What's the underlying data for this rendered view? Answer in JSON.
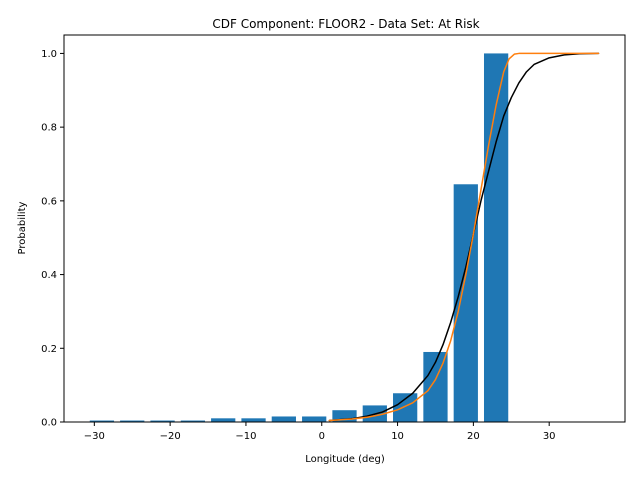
{
  "chart_data": {
    "type": "bar",
    "title": "CDF Component: FLOOR2 - Data Set: At Risk",
    "xlabel": "Longitude (deg)",
    "ylabel": "Probability",
    "xlim": [
      -34,
      40
    ],
    "ylim": [
      0,
      1.05
    ],
    "xticks": [
      -30,
      -20,
      -10,
      0,
      10,
      20,
      30
    ],
    "yticks": [
      0.0,
      0.2,
      0.4,
      0.6,
      0.8,
      1.0
    ],
    "xtick_labels": [
      "−30",
      "−20",
      "−10",
      "0",
      "10",
      "20",
      "30"
    ],
    "ytick_labels": [
      "0.0",
      "0.2",
      "0.4",
      "0.6",
      "0.8",
      "1.0"
    ],
    "bar_width": 3.2,
    "bar_color": "#1f77b4",
    "bars": {
      "x": [
        -29,
        -25,
        -21,
        -17,
        -13,
        -9,
        -5,
        -1,
        3,
        7,
        11,
        15,
        19,
        23
      ],
      "values": [
        0.004,
        0.004,
        0.004,
        0.004,
        0.01,
        0.01,
        0.015,
        0.015,
        0.032,
        0.045,
        0.078,
        0.19,
        0.645,
        1.0
      ]
    },
    "series": [
      {
        "color": "#000000",
        "x": [
          1,
          4,
          6,
          8,
          10,
          12,
          14,
          15,
          16,
          17,
          18,
          19,
          20,
          21,
          22,
          23,
          24,
          25,
          26,
          27,
          28,
          30,
          32,
          34,
          36.5
        ],
        "values": [
          0.004,
          0.009,
          0.016,
          0.027,
          0.047,
          0.078,
          0.126,
          0.162,
          0.21,
          0.27,
          0.34,
          0.42,
          0.51,
          0.6,
          0.68,
          0.76,
          0.83,
          0.88,
          0.92,
          0.95,
          0.97,
          0.988,
          0.996,
          0.999,
          1.0
        ]
      },
      {
        "color": "#ff7f0e",
        "x": [
          1,
          4,
          6,
          8,
          10,
          12,
          14,
          15,
          16,
          17,
          18,
          19,
          20,
          21,
          22,
          23,
          24,
          24.7,
          25.4,
          26,
          28,
          32,
          36.5
        ],
        "values": [
          0.004,
          0.008,
          0.013,
          0.021,
          0.033,
          0.052,
          0.085,
          0.115,
          0.16,
          0.22,
          0.3,
          0.4,
          0.51,
          0.63,
          0.75,
          0.86,
          0.95,
          0.985,
          0.998,
          1.0,
          1.0,
          1.0,
          1.0
        ]
      }
    ],
    "grid": false,
    "legend": "none"
  }
}
